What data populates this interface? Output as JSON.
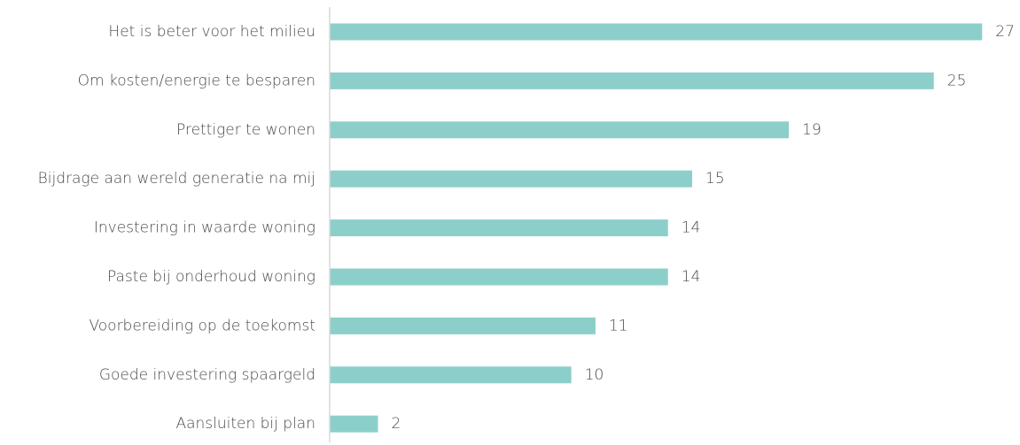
{
  "chart_data": {
    "type": "bar",
    "orientation": "horizontal",
    "categories": [
      "Het is beter voor het milieu",
      "Om kosten/energie te besparen",
      "Prettiger te wonen",
      "Bijdrage aan wereld generatie na mij",
      "Investering in waarde woning",
      "Paste bij onderhoud woning",
      "Voorbereiding op de toekomst",
      "Goede investering spaargeld",
      "Aansluiten bij plan"
    ],
    "values": [
      27,
      25,
      19,
      15,
      14,
      14,
      11,
      10,
      2
    ],
    "value_labels": [
      "27",
      "25",
      "19",
      "15",
      "14",
      "14",
      "11",
      "10",
      "2"
    ],
    "xlim": [
      0,
      27
    ],
    "bar_color": "#8ccfca",
    "axis_color": "#d9d9d9",
    "grid": false,
    "legend": "none"
  }
}
